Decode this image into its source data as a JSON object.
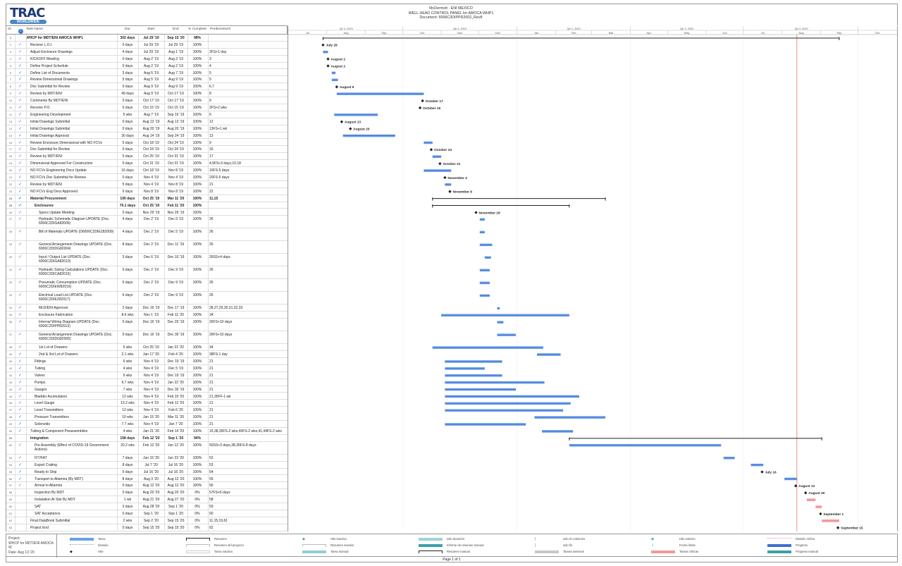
{
  "header": {
    "logo_text": "TRAC",
    "logo_sub": "WORLDWIDE",
    "title_lines": [
      "McDermott - ENI MEXICO",
      "WELL HEAD CONTROL PANEL for AMOCA WHP1",
      "Document: 6006C2DIPPR2002_Rev8"
    ]
  },
  "columns": {
    "id": "ID",
    "indicators": "i",
    "name": "Task Name",
    "dur": "Dur",
    "start": "Start",
    "end": "End",
    "pct": "% Complete",
    "pred": "Predecessors"
  },
  "timeline": {
    "quarters": [
      "Qtr 3, 2019",
      "Qtr 4, 2019",
      "Qtr 1, 2020",
      "Qtr 2, 2020",
      "Qtr 3, 2020"
    ],
    "months": [
      "Jul",
      "Aug",
      "Sep",
      "Oct",
      "Nov",
      "Dec",
      "Jan",
      "Feb",
      "Mar",
      "Apr",
      "May",
      "Jun",
      "Jul",
      "Aug",
      "Sep",
      "Oct"
    ],
    "status_date": "Aug 13 '20",
    "colors": {
      "task": "#6a9fe6",
      "critical": "#f09a9a",
      "status_line": "#e04040",
      "summary": "#222"
    }
  },
  "tasks": [
    {
      "id": "1",
      "name": "WHCP for MDT/ENI AMOCA WHP1",
      "dur": "302 days",
      "start": "Jul 29 '19",
      "end": "Sep 15 '20",
      "pct": "98%",
      "pred": "",
      "type": "summary",
      "level": 0,
      "done": false
    },
    {
      "id": "2",
      "name": "Recieve L.O.I.",
      "dur": "0 days",
      "start": "Jul 29 '19",
      "end": "Jul 29 '19",
      "pct": "100%",
      "pred": "",
      "type": "milestone",
      "label": "July 29",
      "level": 1,
      "done": true
    },
    {
      "id": "3",
      "name": "Adjust Enclosure Drawings",
      "dur": "4 days",
      "start": "Jul 29 '19",
      "end": "Aug 1 '19",
      "pct": "100%",
      "pred": "2FS+1 day",
      "level": 1,
      "done": true
    },
    {
      "id": "4",
      "name": "KICKOFF Meeting",
      "dur": "0 days",
      "start": "Aug 2 '19",
      "end": "Aug 2 '19",
      "pct": "100%",
      "pred": "3",
      "type": "milestone",
      "label": "August 2",
      "level": 1,
      "done": true
    },
    {
      "id": "5",
      "name": "Define Project Schedule",
      "dur": "0 days",
      "start": "Aug 2 '19",
      "end": "Aug 2 '19",
      "pct": "100%",
      "pred": "4",
      "type": "milestone",
      "label": "August 2",
      "level": 1,
      "done": true
    },
    {
      "id": "6",
      "name": "Define List of Documents",
      "dur": "3 days",
      "start": "Aug 5 '19",
      "end": "Aug 7 '19",
      "pct": "100%",
      "pred": "5",
      "level": 1,
      "done": true
    },
    {
      "id": "7",
      "name": "Review Dimensional Drawings",
      "dur": "5 days",
      "start": "Aug 5 '19",
      "end": "Aug 9 '19",
      "pct": "100%",
      "pred": "5",
      "level": 1,
      "done": true
    },
    {
      "id": "8",
      "name": "Doc Submittal for Review",
      "dur": "0 days",
      "start": "Aug 9 '19",
      "end": "Aug 9 '19",
      "pct": "100%",
      "pred": "6,7",
      "type": "milestone",
      "label": "August 9",
      "level": 1,
      "done": true
    },
    {
      "id": "9",
      "name": "Review by MDT/ENI",
      "dur": "49 days",
      "start": "Aug 9 '19",
      "end": "Oct 17 '19",
      "pct": "100%",
      "pred": "8",
      "level": 1,
      "done": true
    },
    {
      "id": "10",
      "name": "Comments By MDT/ENI",
      "dur": "0 days",
      "start": "Oct 17 '19",
      "end": "Oct 17 '19",
      "pct": "100%",
      "pred": "9",
      "type": "milestone",
      "label": "October 17",
      "level": 1,
      "done": true
    },
    {
      "id": "11",
      "name": "Receive P.O.",
      "dur": "0 days",
      "start": "Oct 15 '19",
      "end": "Oct 15 '19",
      "pct": "100%",
      "pred": "2FS+2 wks",
      "type": "milestone",
      "label": "October 15",
      "level": 1,
      "done": true
    },
    {
      "id": "12",
      "name": "Engineering Development",
      "dur": "5 wks",
      "start": "Aug 7 '19",
      "end": "Sep 10 '19",
      "pct": "100%",
      "pred": "6",
      "level": 1,
      "done": true
    },
    {
      "id": "13",
      "name": "Initial Drawings Submittal",
      "dur": "0 days",
      "start": "Aug 13 '19",
      "end": "Aug 13 '19",
      "pct": "100%",
      "pred": "12",
      "type": "milestone",
      "label": "August 13",
      "level": 1,
      "done": true
    },
    {
      "id": "14",
      "name": "Initial Drawings Submittal",
      "dur": "0 days",
      "start": "Aug 20 '19",
      "end": "Aug 20 '19",
      "pct": "100%",
      "pred": "13FS+1 wk",
      "type": "milestone",
      "label": "August 20",
      "level": 1,
      "done": true
    },
    {
      "id": "15",
      "name": "Initial Drawings Approval",
      "dur": "30 days",
      "start": "Aug 14 '19",
      "end": "Sep 24 '19",
      "pct": "100%",
      "pred": "13",
      "level": 1,
      "done": true
    },
    {
      "id": "16",
      "name": "Review Enclosure Dimensional with  NO FCVs",
      "dur": "5 days",
      "start": "Oct 18 '19",
      "end": "Oct 24 '19",
      "pct": "100%",
      "pred": "9",
      "level": 1,
      "done": true
    },
    {
      "id": "17",
      "name": "Doc Submittal for Review",
      "dur": "0 days",
      "start": "Oct 24 '19",
      "end": "Oct 24 '19",
      "pct": "100%",
      "pred": "16",
      "type": "milestone",
      "label": "October 24",
      "level": 1,
      "done": true
    },
    {
      "id": "18",
      "name": "Review by MDT/ENI",
      "dur": "5 days",
      "start": "Oct 25 '19",
      "end": "Oct 31 '19",
      "pct": "100%",
      "pred": "17",
      "level": 1,
      "done": true
    },
    {
      "id": "19",
      "name": "Dimensional Approved For Construction",
      "dur": "0 days",
      "start": "Oct 31 '19",
      "end": "Oct 31 '19",
      "pct": "100%",
      "pred": "4,9FS+3 days,10,18",
      "type": "milestone",
      "label": "October 31",
      "level": 1,
      "done": true
    },
    {
      "id": "20",
      "name": "NO FCVs Engineering Docs Update",
      "dur": "16 days",
      "start": "Oct 18 '19",
      "end": "Nov 8 '19",
      "pct": "100%",
      "pred": "16FS-5 days",
      "level": 1,
      "done": true
    },
    {
      "id": "21",
      "name": "NO FCVs Doc Submittal for Review",
      "dur": "0 days",
      "start": "Nov 4 '19",
      "end": "Nov 4 '19",
      "pct": "100%",
      "pred": "20FS-5 days",
      "type": "milestone",
      "label": "November 4",
      "level": 1,
      "done": true
    },
    {
      "id": "22",
      "name": "Review by MDT/ENI",
      "dur": "5 days",
      "start": "Nov 4 '19",
      "end": "Nov 8 '19",
      "pct": "100%",
      "pred": "21",
      "level": 1,
      "done": true
    },
    {
      "id": "23",
      "name": "NO FCVs Eng Docs Approved",
      "dur": "0 days",
      "start": "Nov 8 '19",
      "end": "Nov 8 '19",
      "pct": "100%",
      "pred": "22",
      "type": "milestone",
      "label": "November 8",
      "level": 1,
      "done": true
    },
    {
      "id": "24",
      "name": "Material Procurement",
      "dur": "100 days",
      "start": "Oct 25 '19",
      "end": "Mar 11 '20",
      "pct": "100%",
      "pred": "11,15",
      "type": "summary",
      "level": 1,
      "done": true
    },
    {
      "id": "25",
      "name": "Enclosures",
      "dur": "70.1 days",
      "start": "Oct 25 '19",
      "end": "Feb 11 '20",
      "pct": "100%",
      "pred": "",
      "type": "summary",
      "level": 2,
      "done": true
    },
    {
      "id": "26",
      "name": "Specs Update Meeting",
      "dur": "0 days",
      "start": "Nov 29 '19",
      "end": "Nov 29 '19",
      "pct": "100%",
      "pred": "",
      "type": "milestone",
      "label": "November 29",
      "level": 3,
      "done": true
    },
    {
      "id": "27",
      "name": "Hydraulic Schematic Diagram UPDATE (Doc. 6006C2DIGA82006)",
      "dur": "4 days",
      "start": "Dec 2 '19",
      "end": "Dec 5 '19",
      "pct": "100%",
      "pred": "26",
      "level": 3,
      "done": true
    },
    {
      "id": "28",
      "name": " Bill of Materials UPDATE (D6006C2DIEZ82009)",
      "dur": "4 days",
      "start": "Dec 2 '19",
      "end": "Dec 5 '19",
      "pct": "100%",
      "pred": "26",
      "level": 3,
      "done": true
    },
    {
      "id": "29",
      "name": "General Arrangement Drawings UPDATE (Doc. 6006C2DIDG82004)",
      "dur": "8 days",
      "start": "Dec 2 '19",
      "end": "Dec 11 '19",
      "pct": "100%",
      "pred": "26",
      "level": 3,
      "done": true
    },
    {
      "id": "30",
      "name": "Input / Output List UPDATE (Doc. 6006C2DIGA82010)",
      "dur": "3 days",
      "start": "Dec 6 '19",
      "end": "Dec 10 '19",
      "pct": "100%",
      "pred": "26SS+4 days",
      "level": 3,
      "done": true
    },
    {
      "id": "31",
      "name": "Hydraulic Sizing Calculations UPDATE (Doc. 6006C2DICA82015)",
      "dur": "6 days",
      "start": "Dec 2 '19",
      "end": "Dec 9 '19",
      "pct": "100%",
      "pred": "26",
      "level": 3,
      "done": true
    },
    {
      "id": "32",
      "name": "Pneumatic Consumption UPDATE (Doc. 6006C2DIEW82016)",
      "dur": "6 days",
      "start": "Dec 2 '19",
      "end": "Dec 9 '19",
      "pct": "100%",
      "pred": "26",
      "level": 3,
      "done": true
    },
    {
      "id": "33",
      "name": "Electrical Load List UPDATE (Doc. 6006C2DIEZ82017)",
      "dur": "6 days",
      "start": "Dec 2 '19",
      "end": "Dec 9 '19",
      "pct": "100%",
      "pred": "26",
      "level": 3,
      "done": true
    },
    {
      "id": "34",
      "name": "McD/ENI Approval",
      "dur": "2 days",
      "start": "Dec 16 '19",
      "end": "Dec 17 '19",
      "pct": "100%",
      "pred": "28,27,29,30,31,32,33",
      "level": 3,
      "done": true
    },
    {
      "id": "35",
      "name": "Enclosure Fabrication",
      "dur": "8.6 wks",
      "start": "Nov 1 '19",
      "end": "Feb 11 '20",
      "pct": "100%",
      "pred": "34",
      "level": 3,
      "done": true
    },
    {
      "id": "36",
      "name": "Internal Wiring Diagram UPDATE (Doc. 6006C2DIPP82013)",
      "dur": "5 days",
      "start": "Dec 16 '19",
      "end": "Dec 20 '19",
      "pct": "100%",
      "pred": "26FS+10 days",
      "level": 3,
      "done": true
    },
    {
      "id": "37",
      "name": "General Arrangement Drawings UPDATE (Doc. 6006C2DIDG82005)",
      "dur": "9 days",
      "start": "Dec 16 '19",
      "end": "Dec 30 '19",
      "pct": "100%",
      "pred": "26FS+10 days",
      "level": 3,
      "done": true
    },
    {
      "id": "38",
      "name": "1st Lot of Drawers",
      "dur": "5 wks",
      "start": "Oct 25 '19",
      "end": "Jan 21 '20",
      "pct": "100%",
      "pred": "34",
      "level": 3,
      "done": true
    },
    {
      "id": "39",
      "name": "2nd & 3rd Lot of Drawers",
      "dur": "2.1 wks",
      "start": "Jan 17 '20",
      "end": "Feb 4 '20",
      "pct": "100%",
      "pred": "38FS-1 day",
      "level": 3,
      "done": true
    },
    {
      "id": "40",
      "name": "Fittings",
      "dur": "6 wks",
      "start": "Nov 4 '19",
      "end": "Dec 19 '19",
      "pct": "100%",
      "pred": "21",
      "level": 2,
      "done": true
    },
    {
      "id": "41",
      "name": "Tubing",
      "dur": "4 wks",
      "start": "Nov 4 '19",
      "end": "Dec 5 '19",
      "pct": "100%",
      "pred": "21",
      "level": 2,
      "done": true
    },
    {
      "id": "42",
      "name": "Valves",
      "dur": "6 wks",
      "start": "Nov 4 '19",
      "end": "Dec 19 '19",
      "pct": "100%",
      "pred": "21",
      "level": 2,
      "done": true
    },
    {
      "id": "43",
      "name": "Pumps",
      "dur": "9.7 wks",
      "start": "Nov 4 '19",
      "end": "Jan 22 '20",
      "pct": "100%",
      "pred": "21",
      "level": 2,
      "done": true
    },
    {
      "id": "44",
      "name": "Gauges",
      "dur": "7 wks",
      "start": "Nov 4 '19",
      "end": "Dec 30 '19",
      "pct": "100%",
      "pred": "21",
      "level": 2,
      "done": true
    },
    {
      "id": "45",
      "name": "Bladder Acumulators",
      "dur": "12 wks",
      "start": "Nov 4 '19",
      "end": "Feb 19 '20",
      "pct": "100%",
      "pred": "21,35FF-1 wk",
      "level": 2,
      "done": true
    },
    {
      "id": "46",
      "name": "Level Gauge",
      "dur": "13.2 wks",
      "start": "Nov 4 '19",
      "end": "Feb 12 '20",
      "pct": "100%",
      "pred": "21",
      "level": 2,
      "done": true
    },
    {
      "id": "47",
      "name": "Level Transmitters",
      "dur": "12 wks",
      "start": "Nov 4 '19",
      "end": "Feb 6 '20",
      "pct": "100%",
      "pred": "21",
      "level": 2,
      "done": true
    },
    {
      "id": "48",
      "name": "Pressure Transmitters",
      "dur": "10 wks",
      "start": "Jan 15 '20",
      "end": "Mar 11 '20",
      "pct": "100%",
      "pred": "21",
      "level": 2,
      "done": true
    },
    {
      "id": "49",
      "name": "Solenoids",
      "dur": "7.7 wks",
      "start": "Nov 4 '19",
      "end": "Jan 7 '20",
      "pct": "100%",
      "pred": "21",
      "level": 2,
      "done": true
    },
    {
      "id": "50",
      "name": "Tubing & Component Preassemblies",
      "dur": "4 wks",
      "start": "Jan 21 '20",
      "end": "Feb 14 '20",
      "pct": "100%",
      "pred": "15,38,39FS-2 wks,40FS-2 wks,41,44FS-2 wks",
      "level": 1,
      "done": true
    },
    {
      "id": "51",
      "name": "Integration",
      "dur": "158 days",
      "start": "Feb 12 '20",
      "end": "Sep 1 '20",
      "pct": "94%",
      "pred": "",
      "type": "summary",
      "level": 1,
      "done": false
    },
    {
      "id": "52",
      "name": "Pre Assembly (Effect of COVID-19 Government Actions)",
      "dur": "20.2 wks",
      "start": "Feb 12 '20",
      "end": "Jun 12 '20",
      "pct": "100%",
      "pred": "50SS+3 days,38,35FS-8 days",
      "level": 2,
      "done": true
    },
    {
      "id": "53",
      "name": "FIT/FAT",
      "dur": "7 days",
      "start": "Jun 15 '20",
      "end": "Jun 23 '20",
      "pct": "100%",
      "pred": "52",
      "level": 2,
      "done": true
    },
    {
      "id": "54",
      "name": "Export Crating",
      "dur": "8 days",
      "start": "Jul 7 '20",
      "end": "Jul 16 '20",
      "pct": "100%",
      "pred": "53",
      "level": 2,
      "done": true
    },
    {
      "id": "55",
      "name": "Ready to Ship",
      "dur": "0 days",
      "start": "Jul 16 '20",
      "end": "Jul 16 '20",
      "pct": "100%",
      "pred": "54",
      "type": "milestone",
      "label": "July 16",
      "level": 2,
      "done": true
    },
    {
      "id": "56",
      "name": "Transport to Altamira (By MDT)",
      "dur": "8 days",
      "start": "Aug 3 '20",
      "end": "Aug 12 '20",
      "pct": "100%",
      "pred": "55",
      "level": 2,
      "done": true
    },
    {
      "id": "57",
      "name": "Arrival to Altamira",
      "dur": "0 days",
      "start": "Aug 12 '20",
      "end": "Aug 12 '20",
      "pct": "100%",
      "pred": "56",
      "type": "milestone",
      "label": "August 12",
      "level": 2,
      "done": true
    },
    {
      "id": "58",
      "name": "Inspection By MDT",
      "dur": "0 days",
      "start": "Aug 20 '20",
      "end": "Aug 20 '20",
      "pct": "0%",
      "pred": "57FS+6 days",
      "type": "milestone",
      "label": "August 20",
      "level": 2,
      "done": false
    },
    {
      "id": "59",
      "name": "Instalation At Site By MDT",
      "dur": "1 wk",
      "start": "Aug 21 '20",
      "end": "Aug 27 '20",
      "pct": "0%",
      "pred": "58",
      "level": 2,
      "done": false
    },
    {
      "id": "60",
      "name": "SAT",
      "dur": "3 days",
      "start": "Aug 28 '20",
      "end": "Sep 1 '20",
      "pct": "0%",
      "pred": "59",
      "level": 2,
      "done": false
    },
    {
      "id": "61",
      "name": "SAT Acceptance",
      "dur": "0 days",
      "start": "Sep 1 '20",
      "end": "Sep 1 '20",
      "pct": "0%",
      "pred": "60",
      "type": "milestone",
      "label": "September 1",
      "level": 2,
      "done": false
    },
    {
      "id": "62",
      "name": "Final DataBook Submittal",
      "dur": "2 wks",
      "start": "Sep 2 '20",
      "end": "Sep 15 '20",
      "pct": "0%",
      "pred": "11,15,19,61",
      "level": 1,
      "done": false
    },
    {
      "id": "63",
      "name": "Project End",
      "dur": "0 days",
      "start": "Sep 15 '20",
      "end": "Sep 15 '20",
      "pct": "0%",
      "pred": "62",
      "type": "milestone",
      "label": "September 15",
      "level": 1,
      "done": false
    }
  ],
  "footer": {
    "project_label": "Project:",
    "project_name": "WHCP for MDT/ENI AMOCA W",
    "date": "Date: Aug 13 '20",
    "page": "Page 1 of 1"
  },
  "legend": [
    {
      "label": "Tarea",
      "swatch": "#6a9fe6"
    },
    {
      "label": "División",
      "swatch": "dots"
    },
    {
      "label": "Hito",
      "swatch": "diamond"
    },
    {
      "label": "Resumen",
      "swatch": "bracket"
    },
    {
      "label": "Resumen del proyecto",
      "swatch": "bracket-gray"
    },
    {
      "label": "Tarea inactiva",
      "swatch": "#ffffff"
    },
    {
      "label": "Hito inactivo",
      "swatch": "diamond-open"
    },
    {
      "label": "Resumen inactivo",
      "swatch": "bracket-gray"
    },
    {
      "label": "Tarea manual",
      "swatch": "#8fcfd6"
    },
    {
      "label": "solo duración",
      "swatch": "#9dd3da"
    },
    {
      "label": "Informe de resumen manual",
      "swatch": "#3aa0a8"
    },
    {
      "label": "Resumen manual",
      "swatch": "bracket"
    },
    {
      "label": "solo el comienzo",
      "swatch": "["
    },
    {
      "label": "solo fin",
      "swatch": "]"
    },
    {
      "label": "Tareas externas",
      "swatch": "#c8c8c8"
    },
    {
      "label": "Hito externo",
      "swatch": "diamond-gray"
    },
    {
      "label": "Fecha límite",
      "swatch": "arrow-green"
    },
    {
      "label": "Tareas críticas",
      "swatch": "#f09a9a"
    },
    {
      "label": "División crítica",
      "swatch": "dots-red"
    },
    {
      "label": "Progreso",
      "swatch": "#3c6fd0"
    },
    {
      "label": "Progreso manual",
      "swatch": "#3aa0a8"
    }
  ]
}
